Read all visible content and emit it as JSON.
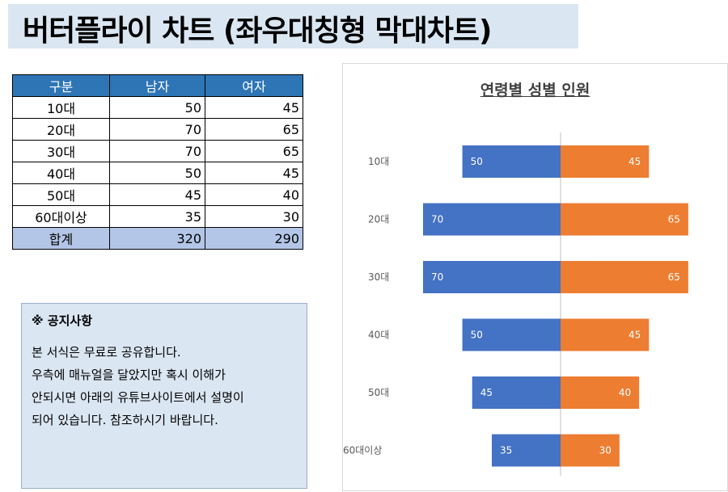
{
  "page_title": "버터플라이 차트 (좌우대칭형 막대차트)",
  "table": {
    "headers": [
      "구분",
      "남자",
      "여자"
    ],
    "rows": [
      {
        "label": "10대",
        "male": "50",
        "female": "45"
      },
      {
        "label": "20대",
        "male": "70",
        "female": "65"
      },
      {
        "label": "30대",
        "male": "70",
        "female": "65"
      },
      {
        "label": "40대",
        "male": "50",
        "female": "45"
      },
      {
        "label": "50대",
        "male": "45",
        "female": "40"
      },
      {
        "label": "60대이상",
        "male": "35",
        "female": "30"
      }
    ],
    "total": {
      "label": "합계",
      "male": "320",
      "female": "290"
    }
  },
  "notice": {
    "title": "※ 공지사항",
    "lines": [
      "본 서식은 무료로 공유합니다.",
      "우측에 매뉴얼을 달았지만 혹시 이해가",
      "안되시면 아래의 유튜브사이트에서 설명이",
      "되어 있습니다. 참조하시기 바랍니다."
    ]
  },
  "chart_data": {
    "type": "bar",
    "orientation": "horizontal-butterfly",
    "title": "연령별 성별 인원",
    "categories": [
      "10대",
      "20대",
      "30대",
      "40대",
      "50대",
      "60대이상"
    ],
    "series": [
      {
        "values": [
          50,
          70,
          70,
          50,
          45,
          35
        ],
        "color": "#4472c4",
        "side": "left"
      },
      {
        "values": [
          45,
          65,
          65,
          45,
          40,
          30
        ],
        "color": "#ed7d31",
        "side": "right"
      }
    ],
    "xlim": [
      -70,
      70
    ],
    "grid": false,
    "legend": "none"
  }
}
